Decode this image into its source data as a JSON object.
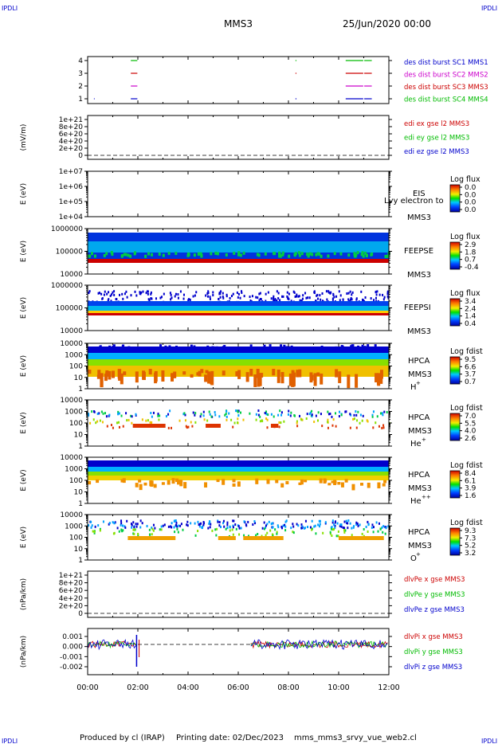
{
  "corner_label": "IPDLI",
  "title": {
    "left": "MMS3",
    "right": "25/Jun/2020 00:00"
  },
  "footer": {
    "producer": "Produced by cl (IRAP)",
    "printing": "Printing date: 02/Dec/2023",
    "script": "mms_mms3_srvy_vue_web2.cl"
  },
  "colors": {
    "blue": "#0000cc",
    "magenta": "#cc00cc",
    "red": "#cc0000",
    "green": "#00bb00"
  },
  "time_axis": {
    "range": [
      "00:00",
      "12:00"
    ],
    "ticks": [
      "00:00",
      "02:00",
      "04:00",
      "06:00",
      "08:00",
      "10:00",
      "12:00"
    ]
  },
  "chart_data": [
    {
      "type": "line",
      "title": "burst",
      "yticks": [
        "4",
        "3",
        "2",
        "1"
      ],
      "legend": [
        {
          "text": "des dist burst SC1 MMS1",
          "color": "blue"
        },
        {
          "text": "des dist burst SC2 MMS2",
          "color": "magenta"
        },
        {
          "text": "des dist burst SC3 MMS3",
          "color": "red"
        },
        {
          "text": "des dist burst SC4 MMS4",
          "color": "green"
        }
      ],
      "series": [
        {
          "level": 4,
          "color": "green",
          "intervals": [
            [
              1.72,
              1.98
            ],
            [
              8.28,
              8.32
            ],
            [
              10.28,
              10.98
            ],
            [
              11.02,
              11.32
            ]
          ]
        },
        {
          "level": 3,
          "color": "red",
          "intervals": [
            [
              1.72,
              1.98
            ],
            [
              8.28,
              8.32
            ],
            [
              10.28,
              10.98
            ],
            [
              11.02,
              11.32
            ]
          ]
        },
        {
          "level": 2,
          "color": "magenta",
          "intervals": [
            [
              1.72,
              1.98
            ],
            [
              10.28,
              10.98
            ],
            [
              11.02,
              11.32
            ]
          ]
        },
        {
          "level": 1,
          "color": "blue",
          "intervals": [
            [
              0.25,
              0.28
            ],
            [
              1.72,
              1.98
            ],
            [
              8.28,
              8.32
            ],
            [
              10.28,
              10.98
            ],
            [
              11.02,
              11.32
            ]
          ]
        }
      ]
    },
    {
      "type": "line",
      "title": "edi",
      "ylabel": "(mV/m)",
      "yticks": [
        "1e+21",
        "8e+20",
        "6e+20",
        "4e+20",
        "2e+20",
        "0"
      ],
      "legend": [
        {
          "text": "edi ex gse l2 MMS3",
          "color": "red"
        },
        {
          "text": "edi ey gse l2 MMS3",
          "color": "green"
        },
        {
          "text": "edi ez gse l2 MMS3",
          "color": "blue"
        }
      ]
    },
    {
      "type": "heatmap",
      "ylabel": "E (eV)",
      "yticks": [
        "1e+07",
        "1e+06",
        "1e+05",
        "1e+04"
      ],
      "labels": [
        "EIS",
        "MMS3"
      ],
      "overlay": "Lvy electron to",
      "colorbar": {
        "title": "Log flux",
        "ticks": [
          "0.0",
          "0.0",
          "0.0",
          "0.0"
        ]
      }
    },
    {
      "type": "heatmap",
      "ylabel": "E (eV)",
      "yticks": [
        "1000000",
        "100000",
        "10000"
      ],
      "labels": [
        "FEEPSE",
        "MMS3"
      ],
      "colorbar": {
        "title": "Log flux",
        "ticks": [
          "2.9",
          "1.8",
          "0.7",
          "-0.4"
        ]
      }
    },
    {
      "type": "heatmap",
      "ylabel": "E (eV)",
      "yticks": [
        "1000000",
        "100000",
        "10000"
      ],
      "labels": [
        "FEEPSI",
        "MMS3"
      ],
      "colorbar": {
        "title": "Log flux",
        "ticks": [
          "3.4",
          "2.4",
          "1.4",
          "0.4"
        ]
      }
    },
    {
      "type": "heatmap",
      "ylabel": "E (eV)",
      "yticks": [
        "10000",
        "1000",
        "100",
        "10",
        "1"
      ],
      "labels": [
        "HPCA",
        "MMS3",
        "H",
        "+"
      ],
      "colorbar": {
        "title": "Log fdist",
        "ticks": [
          "9.5",
          "6.6",
          "3.7",
          "0.7"
        ]
      }
    },
    {
      "type": "heatmap",
      "ylabel": "E (eV)",
      "yticks": [
        "10000",
        "1000",
        "100",
        "10",
        "1"
      ],
      "labels": [
        "HPCA",
        "MMS3",
        "He",
        "+"
      ],
      "colorbar": {
        "title": "Log fdist",
        "ticks": [
          "7.0",
          "5.5",
          "4.0",
          "2.6"
        ]
      }
    },
    {
      "type": "heatmap",
      "ylabel": "E (eV)",
      "yticks": [
        "10000",
        "1000",
        "100",
        "10",
        "1"
      ],
      "labels": [
        "HPCA",
        "MMS3",
        "He",
        "++"
      ],
      "colorbar": {
        "title": "Log fdist",
        "ticks": [
          "8.4",
          "6.1",
          "3.9",
          "1.6"
        ]
      }
    },
    {
      "type": "heatmap",
      "ylabel": "E (eV)",
      "yticks": [
        "10000",
        "1000",
        "100",
        "10",
        "1"
      ],
      "labels": [
        "HPCA",
        "MMS3",
        "O",
        "+"
      ],
      "colorbar": {
        "title": "Log fdist",
        "ticks": [
          "9.3",
          "7.3",
          "5.2",
          "3.2"
        ]
      }
    },
    {
      "type": "line",
      "ylabel": "(nPa/km)",
      "yticks": [
        "1e+21",
        "8e+20",
        "6e+20",
        "4e+20",
        "2e+20",
        "0"
      ],
      "legend": [
        {
          "text": "dlvPe x gse MMS3",
          "color": "red"
        },
        {
          "text": "dlvPe y gse MMS3",
          "color": "green"
        },
        {
          "text": "dlvPe z gse MMS3",
          "color": "blue"
        }
      ]
    },
    {
      "type": "line",
      "ylabel": "(nPa/km)",
      "yticks": [
        "0.001",
        "0.000",
        "-0.001",
        "-0.002"
      ],
      "legend": [
        {
          "text": "dlvPi x gse MMS3",
          "color": "red"
        },
        {
          "text": "dlvPi y gse MMS3",
          "color": "green"
        },
        {
          "text": "dlvPi z gse MMS3",
          "color": "blue"
        }
      ]
    }
  ]
}
